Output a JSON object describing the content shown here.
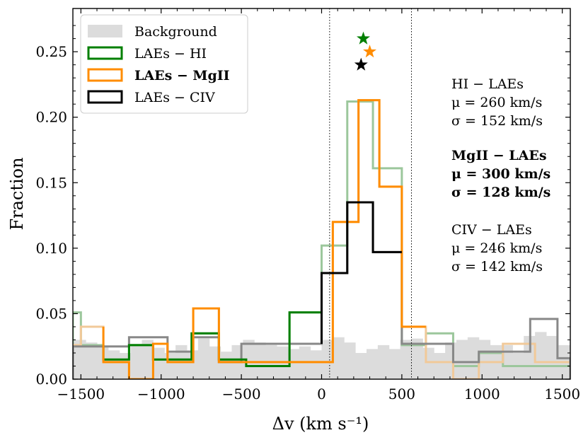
{
  "chart_data": {
    "type": "histogram",
    "xlabel": "Δv (km s⁻¹)",
    "ylabel": "Fraction",
    "xlim": [
      -1550,
      1550
    ],
    "ylim": [
      0,
      0.283
    ],
    "xticks": [
      -1500,
      -1000,
      -500,
      0,
      500,
      1000,
      1500
    ],
    "xtick_labels": [
      "−1500",
      "−1000",
      "−500",
      "0",
      "500",
      "1000",
      "1500"
    ],
    "yticks": [
      0.0,
      0.05,
      0.1,
      0.15,
      0.2,
      0.25
    ],
    "ytick_labels": [
      "0.00",
      "0.05",
      "0.10",
      "0.15",
      "0.20",
      "0.25"
    ],
    "legend_position": "upper-left",
    "legend": [
      {
        "label": "Background",
        "style": "fill",
        "bold": false
      },
      {
        "label": "LAEs − HI",
        "style": "line",
        "bold": false
      },
      {
        "label": "LAEs − MgII",
        "style": "line",
        "bold": true
      },
      {
        "label": "LAEs − CIV",
        "style": "line",
        "bold": false
      }
    ],
    "vlines": [
      50,
      560
    ],
    "background_fill": {
      "color": "#dcdcdc",
      "edges": [
        -1550,
        -1470,
        -1400,
        -1330,
        -1260,
        -1190,
        -1120,
        -1050,
        -980,
        -910,
        -840,
        -770,
        -700,
        -630,
        -560,
        -490,
        -420,
        -350,
        -280,
        -210,
        -140,
        -70,
        0,
        70,
        140,
        210,
        280,
        350,
        420,
        490,
        560,
        630,
        700,
        770,
        840,
        910,
        980,
        1050,
        1120,
        1190,
        1260,
        1330,
        1400,
        1470,
        1550
      ],
      "values": [
        0.03,
        0.028,
        0.025,
        0.022,
        0.02,
        0.027,
        0.03,
        0.024,
        0.02,
        0.026,
        0.022,
        0.031,
        0.025,
        0.021,
        0.026,
        0.03,
        0.028,
        0.026,
        0.025,
        0.023,
        0.025,
        0.022,
        0.03,
        0.032,
        0.028,
        0.02,
        0.023,
        0.026,
        0.023,
        0.03,
        0.031,
        0.024,
        0.02,
        0.028,
        0.03,
        0.032,
        0.03,
        0.026,
        0.026,
        0.02,
        0.033,
        0.036,
        0.033,
        0.026
      ]
    },
    "series": [
      {
        "name": "LAEs − HI",
        "color": "#007f00",
        "faint_color": "#9cc79c",
        "edges": [
          -1550,
          -1500,
          -1360,
          -1200,
          -1050,
          -810,
          -640,
          -470,
          -200,
          0,
          160,
          320,
          500,
          650,
          820,
          980,
          1130,
          1300,
          1550
        ],
        "values": [
          0.051,
          0.026,
          0.015,
          0.026,
          0.015,
          0.035,
          0.015,
          0.01,
          0.051,
          0.102,
          0.212,
          0.161,
          0.026,
          0.035,
          0.01,
          0.02,
          0.01,
          0.01
        ],
        "faint_outside": [
          -1360,
          0
        ]
      },
      {
        "name": "LAEs − MgII",
        "color": "#ff8c00",
        "faint_color": "#f1c999",
        "edges": [
          -1550,
          -1500,
          -1360,
          -1200,
          -1050,
          -960,
          -800,
          -640,
          -200,
          70,
          230,
          360,
          500,
          650,
          820,
          980,
          1130,
          1200,
          1330,
          1550
        ],
        "values": [
          0.026,
          0.04,
          0.013,
          0.0,
          0.027,
          0.013,
          0.054,
          0.013,
          0.013,
          0.12,
          0.213,
          0.147,
          0.04,
          0.013,
          0.0,
          0.013,
          0.027,
          0.027,
          0.013
        ],
        "faint_outside": [
          -1360,
          650
        ]
      },
      {
        "name": "LAEs − CIV",
        "color": "#000000",
        "faint_color": "#888888",
        "edges": [
          -1550,
          -1500,
          -1360,
          -1200,
          -1050,
          -960,
          -800,
          -640,
          -500,
          0,
          160,
          320,
          500,
          650,
          820,
          980,
          1130,
          1300,
          1470,
          1550
        ],
        "values": [
          0.025,
          0.025,
          0.025,
          0.032,
          0.032,
          0.021,
          0.032,
          0.013,
          0.027,
          0.081,
          0.135,
          0.097,
          0.027,
          0.027,
          0.013,
          0.021,
          0.021,
          0.046,
          0.016
        ],
        "faint_outside": [
          0,
          500
        ]
      }
    ],
    "star_markers": [
      {
        "x": 260,
        "y": 0.26,
        "color": "#007f00"
      },
      {
        "x": 300,
        "y": 0.25,
        "color": "#ff8c00"
      },
      {
        "x": 246,
        "y": 0.24,
        "color": "#000000"
      }
    ],
    "annotations": [
      {
        "lines": [
          "HI − LAEs",
          "μ = 260 km/s",
          "σ = 152 km/s"
        ],
        "bold": false
      },
      {
        "lines": [
          "MgII − LAEs",
          "μ = 300 km/s",
          "σ = 128 km/s"
        ],
        "bold": true
      },
      {
        "lines": [
          "CIV − LAEs",
          "μ = 246 km/s",
          "σ = 142 km/s"
        ],
        "bold": false
      }
    ]
  }
}
